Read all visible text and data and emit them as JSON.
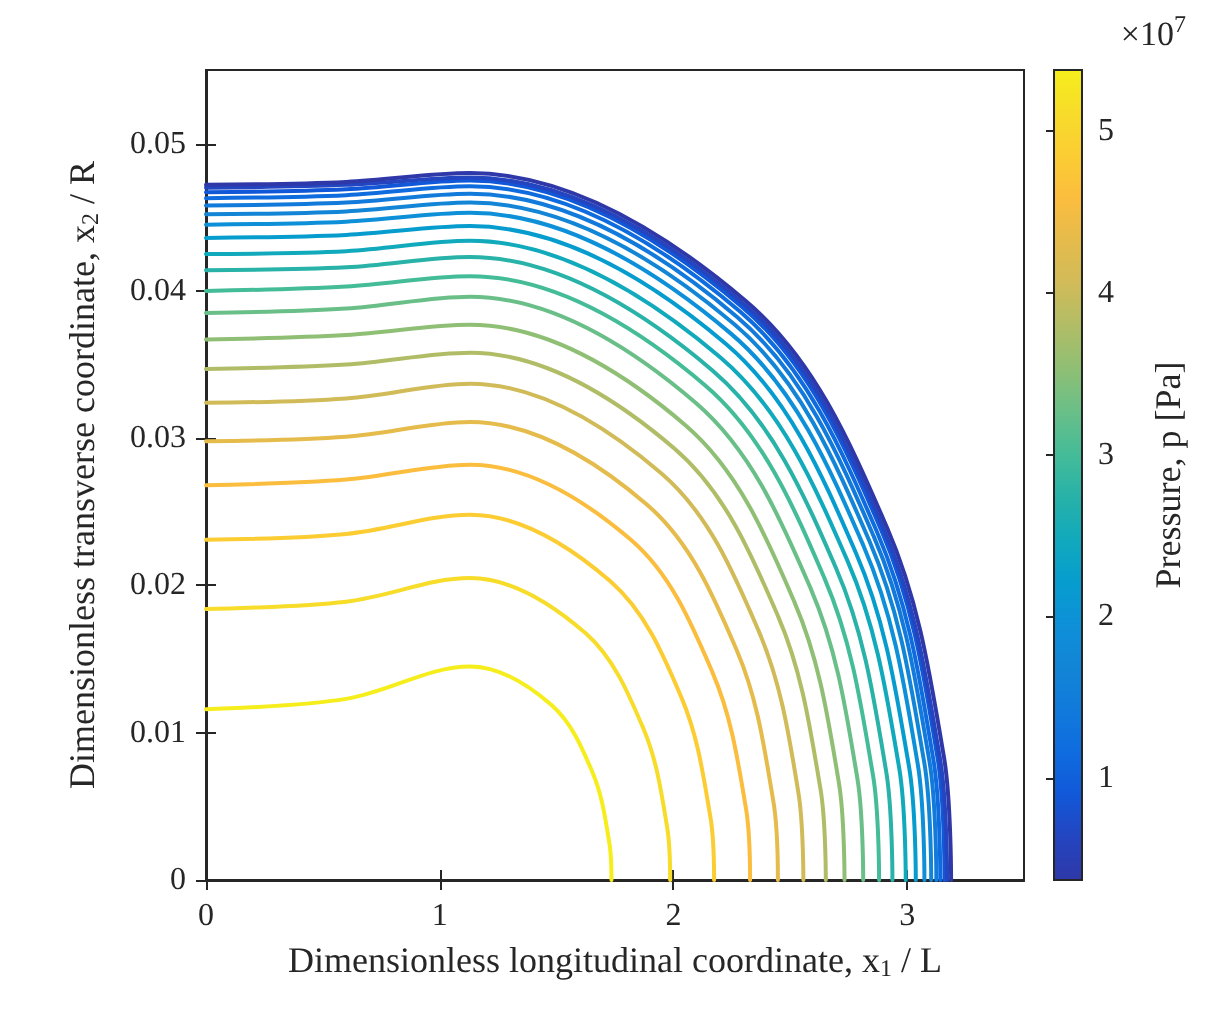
{
  "chart_data": {
    "type": "line",
    "xlabel": "Dimensionless longitudinal coordinate, x$_{1}$ / L",
    "ylabel": "Dimensionless transverse coordinate, x$_{2}$ / R",
    "clabel": "Pressure, p [Pa]",
    "annotations": [
      "×10$^{7}$"
    ],
    "xlim": [
      0,
      3.5
    ],
    "xticks": [
      0,
      1,
      2,
      3
    ],
    "ylim": [
      0,
      0.055
    ],
    "yticks": [
      0,
      0.01,
      0.02,
      0.03,
      0.04,
      0.05
    ],
    "clim": [
      0.37,
      5.38
    ],
    "cticks": [
      1,
      2,
      3,
      4,
      5
    ],
    "grid": false,
    "series": [
      {
        "color": "#f6ee1c",
        "x": [
          0,
          0.6,
          1.13,
          1.477,
          1.654,
          1.726,
          1.735
        ],
        "values": [
          0.0116,
          0.0123,
          0.0145,
          0.0119,
          0.0073,
          0.0025,
          0
        ]
      },
      {
        "color": "#f7dc2a",
        "x": [
          0,
          0.6,
          1.13,
          1.621,
          1.871,
          1.973,
          1.986
        ],
        "values": [
          0.0184,
          0.0189,
          0.0205,
          0.0168,
          0.0103,
          0.0036,
          0
        ]
      },
      {
        "color": "#fbcd33",
        "x": [
          0,
          0.6,
          1.13,
          1.729,
          2.034,
          2.158,
          2.174
        ],
        "values": [
          0.0231,
          0.0235,
          0.0248,
          0.0203,
          0.0124,
          0.0043,
          0
        ]
      },
      {
        "color": "#fbbd3e",
        "x": [
          0,
          0.6,
          1.13,
          1.818,
          2.167,
          2.31,
          2.328
        ],
        "values": [
          0.0268,
          0.0272,
          0.0282,
          0.0231,
          0.0141,
          0.0049,
          0
        ]
      },
      {
        "color": "#e5bb4c",
        "x": [
          0,
          0.6,
          1.13,
          1.886,
          2.271,
          2.427,
          2.447
        ],
        "values": [
          0.0298,
          0.0301,
          0.0311,
          0.0255,
          0.0156,
          0.0054,
          0
        ]
      },
      {
        "color": "#d1bb59",
        "x": [
          0,
          0.6,
          1.13,
          1.949,
          2.365,
          2.535,
          2.556
        ],
        "values": [
          0.0324,
          0.0327,
          0.0337,
          0.0276,
          0.0169,
          0.0059,
          0
        ]
      },
      {
        "color": "#b1bd66",
        "x": [
          0,
          0.6,
          1.13,
          2.004,
          2.448,
          2.629,
          2.652
        ],
        "values": [
          0.0347,
          0.035,
          0.0358,
          0.0293,
          0.0179,
          0.0062,
          0
        ]
      },
      {
        "color": "#8fbf74",
        "x": [
          0,
          0.6,
          1.13,
          2.05,
          2.517,
          2.708,
          2.732
        ],
        "values": [
          0.0367,
          0.037,
          0.0377,
          0.0309,
          0.0189,
          0.0066,
          0
        ]
      },
      {
        "color": "#6abf88",
        "x": [
          0,
          0.6,
          1.13,
          2.095,
          2.587,
          2.787,
          2.812
        ],
        "values": [
          0.0385,
          0.0388,
          0.0396,
          0.0324,
          0.0198,
          0.0069,
          0
        ]
      },
      {
        "color": "#45bc98",
        "x": [
          0,
          0.6,
          1.13,
          2.135,
          2.646,
          2.854,
          2.88
        ],
        "values": [
          0.04,
          0.0403,
          0.041,
          0.0336,
          0.0205,
          0.0071,
          0
        ]
      },
      {
        "color": "#28b2a8",
        "x": [
          0,
          0.6,
          1.13,
          2.167,
          2.695,
          2.91,
          2.937
        ],
        "values": [
          0.0414,
          0.0416,
          0.0423,
          0.0346,
          0.0212,
          0.0074,
          0
        ]
      },
      {
        "color": "#11a9bc",
        "x": [
          0,
          0.6,
          1.13,
          2.2,
          2.744,
          2.966,
          2.994
        ],
        "values": [
          0.0425,
          0.0427,
          0.0434,
          0.0355,
          0.0217,
          0.0076,
          0
        ]
      },
      {
        "color": "#069dce",
        "x": [
          0,
          0.6,
          1.13,
          2.225,
          2.781,
          3.008,
          3.037
        ],
        "values": [
          0.0436,
          0.0438,
          0.0444,
          0.0364,
          0.0222,
          0.0077,
          0
        ]
      },
      {
        "color": "#0e90d8",
        "x": [
          0,
          0.6,
          1.13,
          2.246,
          2.813,
          3.045,
          3.074
        ],
        "values": [
          0.0445,
          0.0447,
          0.0453,
          0.0371,
          0.0227,
          0.0079,
          0
        ]
      },
      {
        "color": "#1285d6",
        "x": [
          0,
          0.6,
          1.13,
          2.263,
          2.839,
          3.073,
          3.103
        ],
        "values": [
          0.0452,
          0.0454,
          0.046,
          0.0377,
          0.023,
          0.008,
          0
        ]
      },
      {
        "color": "#117adb",
        "x": [
          0,
          0.6,
          1.13,
          2.275,
          2.858,
          3.095,
          3.125
        ],
        "values": [
          0.0458,
          0.046,
          0.0466,
          0.0382,
          0.0233,
          0.0081,
          0
        ]
      },
      {
        "color": "#0f6cdf",
        "x": [
          0,
          0.6,
          1.13,
          2.285,
          2.872,
          3.112,
          3.142
        ],
        "values": [
          0.0463,
          0.0465,
          0.0471,
          0.0386,
          0.0236,
          0.0082,
          0
        ]
      },
      {
        "color": "#1158d8",
        "x": [
          0,
          0.6,
          1.13,
          2.295,
          2.888,
          3.13,
          3.16
        ],
        "values": [
          0.0467,
          0.0469,
          0.0475,
          0.0389,
          0.0238,
          0.0083,
          0
        ]
      },
      {
        "color": "#2445c0",
        "x": [
          0,
          0.6,
          1.13,
          2.302,
          2.898,
          3.14,
          3.171
        ],
        "values": [
          0.047,
          0.0472,
          0.0477,
          0.0391,
          0.0239,
          0.0083,
          0
        ]
      },
      {
        "color": "#2e38a8",
        "x": [
          0,
          0.6,
          1.13,
          2.311,
          2.912,
          3.157,
          3.188
        ],
        "values": [
          0.0472,
          0.0474,
          0.048,
          0.0393,
          0.024,
          0.0084,
          0
        ]
      }
    ]
  }
}
